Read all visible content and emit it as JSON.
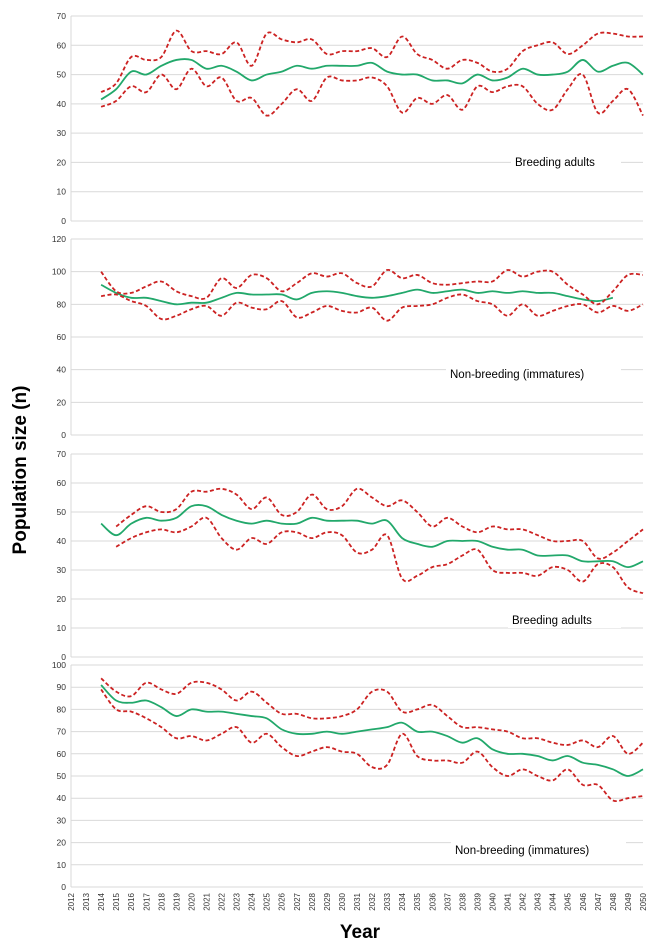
{
  "figure": {
    "y_axis_label": "Population size (n)",
    "x_axis_label": "Year"
  },
  "chart_data": [
    {
      "type": "line",
      "label": "Breeding adults",
      "ylim": [
        0,
        70
      ],
      "yticks": [
        0,
        10,
        20,
        30,
        40,
        50,
        60,
        70
      ],
      "xlim": [
        2012,
        2050
      ],
      "grid": true,
      "series": [
        {
          "role": "mean",
          "color": "#22a86b",
          "dash": "solid",
          "x": [
            2014,
            2015,
            2016,
            2017,
            2018,
            2019,
            2020,
            2021,
            2022,
            2023,
            2024,
            2025,
            2026,
            2027,
            2028,
            2029,
            2030,
            2031,
            2032,
            2033,
            2034,
            2035,
            2036,
            2037,
            2038,
            2039,
            2040,
            2041,
            2042,
            2043,
            2044,
            2045,
            2046,
            2047,
            2048,
            2049,
            2050
          ],
          "values": [
            41.5,
            45,
            51,
            50,
            53,
            55,
            55,
            52,
            53,
            51,
            48,
            50,
            51,
            53,
            52,
            53,
            53,
            53,
            54,
            51,
            50,
            50,
            48,
            48,
            47,
            50,
            48,
            49,
            52,
            50,
            50,
            51,
            55,
            51,
            53,
            54,
            50
          ]
        },
        {
          "role": "upper",
          "color": "#cc2222",
          "dash": "dashed",
          "x": [
            2014,
            2015,
            2016,
            2017,
            2018,
            2019,
            2020,
            2021,
            2022,
            2023,
            2024,
            2025,
            2026,
            2027,
            2028,
            2029,
            2030,
            2031,
            2032,
            2033,
            2034,
            2035,
            2036,
            2037,
            2038,
            2039,
            2040,
            2041,
            2042,
            2043,
            2044,
            2045,
            2046,
            2047,
            2048,
            2049,
            2050
          ],
          "values": [
            44,
            47,
            56,
            55,
            56,
            65,
            58,
            58,
            57,
            61,
            53,
            64,
            62,
            61,
            62,
            57,
            58,
            58,
            59,
            56,
            63,
            57,
            55,
            52,
            55,
            54,
            51,
            52,
            58,
            60,
            61,
            57,
            60,
            64,
            64,
            63,
            63
          ]
        },
        {
          "role": "lower",
          "color": "#cc2222",
          "dash": "dashed",
          "x": [
            2014,
            2015,
            2016,
            2017,
            2018,
            2019,
            2020,
            2021,
            2022,
            2023,
            2024,
            2025,
            2026,
            2027,
            2028,
            2029,
            2030,
            2031,
            2032,
            2033,
            2034,
            2035,
            2036,
            2037,
            2038,
            2039,
            2040,
            2041,
            2042,
            2043,
            2044,
            2045,
            2046,
            2047,
            2048,
            2049,
            2050
          ],
          "values": [
            39,
            41,
            46,
            44,
            50,
            45,
            52,
            46,
            49,
            41,
            42,
            36,
            40,
            45,
            41,
            49,
            48,
            48,
            49,
            46,
            37,
            42,
            40,
            43,
            38,
            46,
            44,
            46,
            46,
            40,
            38,
            45,
            50,
            37,
            41,
            45,
            36
          ]
        }
      ]
    },
    {
      "type": "line",
      "label": "Non-breeding (immatures)",
      "ylim": [
        0,
        120
      ],
      "yticks": [
        0,
        20,
        40,
        60,
        80,
        100,
        120
      ],
      "xlim": [
        2012,
        2050
      ],
      "grid": true,
      "series": [
        {
          "role": "mean",
          "color": "#22a86b",
          "dash": "solid",
          "x": [
            2014,
            2015,
            2016,
            2017,
            2018,
            2019,
            2020,
            2021,
            2022,
            2023,
            2024,
            2025,
            2026,
            2027,
            2028,
            2029,
            2030,
            2031,
            2032,
            2033,
            2034,
            2035,
            2036,
            2037,
            2038,
            2039,
            2040,
            2041,
            2042,
            2043,
            2044,
            2045,
            2046,
            2047,
            2048
          ],
          "values": [
            92,
            87,
            84,
            84,
            82,
            80,
            81,
            81,
            84,
            87,
            86,
            86,
            86,
            83,
            87,
            88,
            87,
            85,
            84,
            85,
            87,
            89,
            87,
            88,
            89,
            87,
            88,
            87,
            88,
            87,
            87,
            85,
            83,
            82,
            84
          ]
        },
        {
          "role": "upper",
          "color": "#cc2222",
          "dash": "dashed",
          "x": [
            2014,
            2015,
            2016,
            2017,
            2018,
            2019,
            2020,
            2021,
            2022,
            2023,
            2024,
            2025,
            2026,
            2027,
            2028,
            2029,
            2030,
            2031,
            2032,
            2033,
            2034,
            2035,
            2036,
            2037,
            2038,
            2039,
            2040,
            2041,
            2042,
            2043,
            2044,
            2045,
            2046,
            2047,
            2048,
            2049,
            2050
          ],
          "values": [
            100,
            88,
            87,
            91,
            94,
            88,
            85,
            84,
            96,
            90,
            98,
            96,
            88,
            93,
            99,
            97,
            99,
            93,
            91,
            101,
            96,
            98,
            93,
            92,
            93,
            94,
            94,
            101,
            97,
            100,
            100,
            92,
            86,
            80,
            88,
            98,
            98
          ]
        },
        {
          "role": "lower",
          "color": "#cc2222",
          "dash": "dashed",
          "x": [
            2014,
            2015,
            2016,
            2017,
            2018,
            2019,
            2020,
            2021,
            2022,
            2023,
            2024,
            2025,
            2026,
            2027,
            2028,
            2029,
            2030,
            2031,
            2032,
            2033,
            2034,
            2035,
            2036,
            2037,
            2038,
            2039,
            2040,
            2041,
            2042,
            2043,
            2044,
            2045,
            2046,
            2047,
            2048,
            2049,
            2050
          ],
          "values": [
            85,
            86,
            82,
            79,
            71,
            73,
            77,
            79,
            73,
            81,
            78,
            77,
            82,
            72,
            75,
            79,
            76,
            75,
            78,
            70,
            78,
            79,
            80,
            84,
            86,
            82,
            80,
            73,
            80,
            73,
            76,
            79,
            80,
            75,
            79,
            76,
            80
          ]
        }
      ]
    },
    {
      "type": "line",
      "label": "Breeding adults",
      "ylim": [
        0,
        70
      ],
      "yticks": [
        0,
        10,
        20,
        30,
        40,
        50,
        60,
        70
      ],
      "xlim": [
        2012,
        2050
      ],
      "grid": true,
      "series": [
        {
          "role": "mean",
          "color": "#22a86b",
          "dash": "solid",
          "x": [
            2014,
            2015,
            2016,
            2017,
            2018,
            2019,
            2020,
            2021,
            2022,
            2023,
            2024,
            2025,
            2026,
            2027,
            2028,
            2029,
            2030,
            2031,
            2032,
            2033,
            2034,
            2035,
            2036,
            2037,
            2038,
            2039,
            2040,
            2041,
            2042,
            2043,
            2044,
            2045,
            2046,
            2047,
            2048,
            2049,
            2050
          ],
          "values": [
            46,
            42,
            46,
            48,
            47,
            48,
            52,
            52,
            49,
            47,
            46,
            47,
            46,
            46,
            48,
            47,
            47,
            47,
            46,
            47,
            41,
            39,
            38,
            40,
            40,
            40,
            38,
            37,
            37,
            35,
            35,
            35,
            33,
            33,
            33,
            31,
            33
          ]
        },
        {
          "role": "upper",
          "color": "#cc2222",
          "dash": "dashed",
          "x": [
            2015,
            2016,
            2017,
            2018,
            2019,
            2020,
            2021,
            2022,
            2023,
            2024,
            2025,
            2026,
            2027,
            2028,
            2029,
            2030,
            2031,
            2032,
            2033,
            2034,
            2035,
            2036,
            2037,
            2038,
            2039,
            2040,
            2041,
            2042,
            2043,
            2044,
            2045,
            2046,
            2047,
            2048,
            2049,
            2050
          ],
          "values": [
            45,
            49,
            52,
            50,
            51,
            57,
            57,
            58,
            56,
            51,
            55,
            49,
            50,
            56,
            51,
            52,
            58,
            55,
            52,
            54,
            50,
            45,
            48,
            45,
            43,
            45,
            44,
            44,
            42,
            40,
            40,
            40,
            34,
            36,
            40,
            44
          ]
        },
        {
          "role": "lower",
          "color": "#cc2222",
          "dash": "dashed",
          "x": [
            2015,
            2016,
            2017,
            2018,
            2019,
            2020,
            2021,
            2022,
            2023,
            2024,
            2025,
            2026,
            2027,
            2028,
            2029,
            2030,
            2031,
            2032,
            2033,
            2034,
            2035,
            2036,
            2037,
            2038,
            2039,
            2040,
            2041,
            2042,
            2043,
            2044,
            2045,
            2046,
            2047,
            2048,
            2049,
            2050
          ],
          "values": [
            38,
            41,
            43,
            44,
            43,
            45,
            48,
            41,
            37,
            41,
            39,
            43,
            43,
            41,
            43,
            42,
            36,
            37,
            42,
            27,
            28,
            31,
            32,
            35,
            37,
            30,
            29,
            29,
            28,
            31,
            30,
            26,
            32,
            31,
            24,
            22
          ]
        }
      ]
    },
    {
      "type": "line",
      "label": "Non-breeding (immatures)",
      "ylim": [
        0,
        100
      ],
      "yticks": [
        0,
        10,
        20,
        30,
        40,
        50,
        60,
        70,
        80,
        90,
        100
      ],
      "xlim": [
        2012,
        2050
      ],
      "grid": true,
      "series": [
        {
          "role": "mean",
          "color": "#22a86b",
          "dash": "solid",
          "x": [
            2014,
            2015,
            2016,
            2017,
            2018,
            2019,
            2020,
            2021,
            2022,
            2023,
            2024,
            2025,
            2026,
            2027,
            2028,
            2029,
            2030,
            2031,
            2032,
            2033,
            2034,
            2035,
            2036,
            2037,
            2038,
            2039,
            2040,
            2041,
            2042,
            2043,
            2044,
            2045,
            2046,
            2047,
            2048,
            2049,
            2050
          ],
          "values": [
            91,
            84,
            83,
            84,
            81,
            77,
            80,
            79,
            79,
            78,
            77,
            76,
            71,
            69,
            69,
            70,
            69,
            70,
            71,
            72,
            74,
            70,
            70,
            68,
            65,
            67,
            62,
            60,
            60,
            59,
            57,
            59,
            56,
            55,
            53,
            50,
            53
          ]
        },
        {
          "role": "upper",
          "color": "#cc2222",
          "dash": "dashed",
          "x": [
            2014,
            2015,
            2016,
            2017,
            2018,
            2019,
            2020,
            2021,
            2022,
            2023,
            2024,
            2025,
            2026,
            2027,
            2028,
            2029,
            2030,
            2031,
            2032,
            2033,
            2034,
            2035,
            2036,
            2037,
            2038,
            2039,
            2040,
            2041,
            2042,
            2043,
            2044,
            2045,
            2046,
            2047,
            2048,
            2049,
            2050
          ],
          "values": [
            94,
            88,
            86,
            92,
            89,
            87,
            92,
            92,
            89,
            84,
            88,
            83,
            78,
            78,
            76,
            76,
            77,
            80,
            88,
            88,
            79,
            80,
            82,
            77,
            72,
            72,
            71,
            70,
            67,
            67,
            65,
            64,
            66,
            63,
            68,
            60,
            65
          ]
        },
        {
          "role": "lower",
          "color": "#cc2222",
          "dash": "dashed",
          "x": [
            2014,
            2015,
            2016,
            2017,
            2018,
            2019,
            2020,
            2021,
            2022,
            2023,
            2024,
            2025,
            2026,
            2027,
            2028,
            2029,
            2030,
            2031,
            2032,
            2033,
            2034,
            2035,
            2036,
            2037,
            2038,
            2039,
            2040,
            2041,
            2042,
            2043,
            2044,
            2045,
            2046,
            2047,
            2048,
            2049,
            2050
          ],
          "values": [
            89,
            80,
            79,
            76,
            72,
            67,
            68,
            66,
            69,
            72,
            65,
            69,
            63,
            59,
            61,
            63,
            61,
            60,
            54,
            55,
            69,
            59,
            57,
            57,
            56,
            61,
            54,
            50,
            53,
            50,
            48,
            53,
            46,
            46,
            39,
            40,
            41
          ]
        }
      ]
    }
  ],
  "x_ticks": [
    "2012",
    "2013",
    "2014",
    "2015",
    "2016",
    "2017",
    "2018",
    "2019",
    "2020",
    "2021",
    "2022",
    "2023",
    "2024",
    "2025",
    "2026",
    "2027",
    "2028",
    "2029",
    "2030",
    "2031",
    "2032",
    "2033",
    "2034",
    "2035",
    "2036",
    "2037",
    "2038",
    "2039",
    "2040",
    "2041",
    "2042",
    "2043",
    "2044",
    "2045",
    "2046",
    "2047",
    "2048",
    "2049",
    "2050"
  ]
}
